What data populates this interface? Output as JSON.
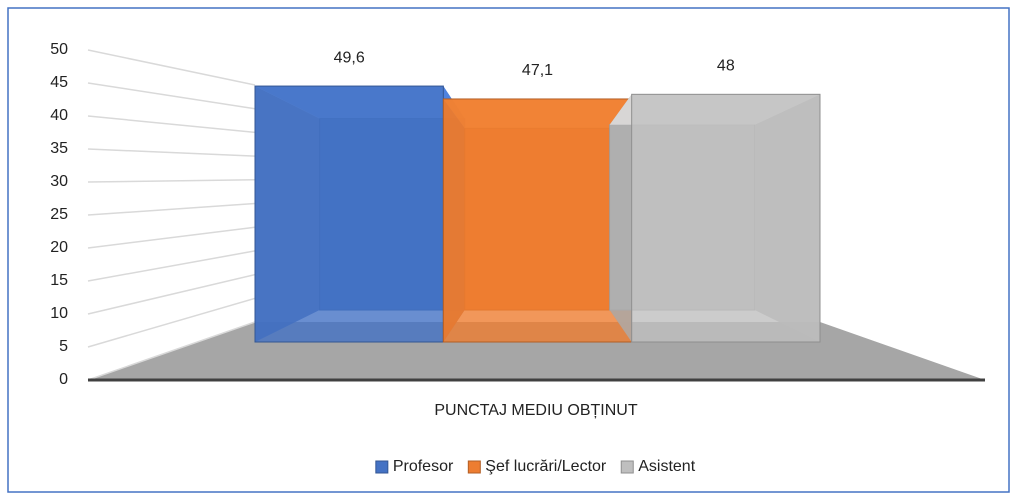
{
  "chart_data": {
    "type": "bar3d",
    "categories": [
      "PUNCTAJ MEDIU OBȚINUT"
    ],
    "series": [
      {
        "name": "Profesor",
        "color": "#4472c4",
        "values": [
          49.6
        ],
        "value_labels": [
          "49,6"
        ]
      },
      {
        "name": "Şef lucrări/Lector",
        "color": "#ed7d31",
        "values": [
          47.1
        ],
        "value_labels": [
          "47,1"
        ]
      },
      {
        "name": "Asistent",
        "color": "#bfbfbf",
        "values": [
          48
        ],
        "value_labels": [
          "48"
        ]
      }
    ],
    "ylim": [
      0,
      50
    ],
    "yticks": [
      0,
      5,
      10,
      15,
      20,
      25,
      30,
      35,
      40,
      45,
      50
    ],
    "grid": true,
    "legend": "bottom"
  }
}
